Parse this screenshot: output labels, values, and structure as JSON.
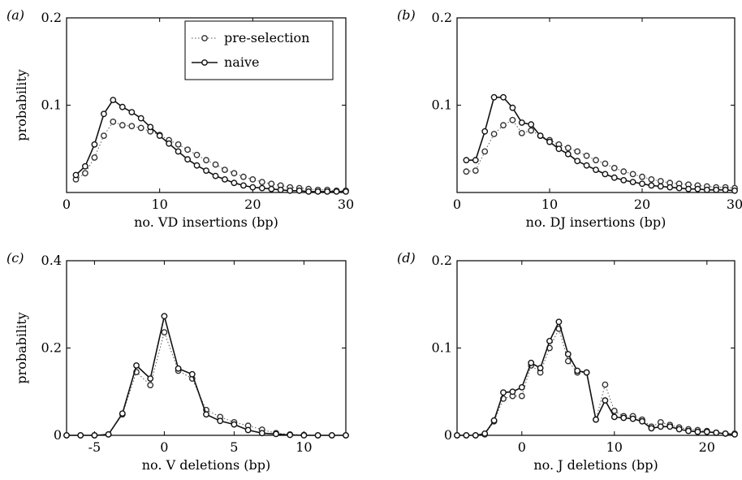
{
  "legend": {
    "pre": "pre-selection",
    "naive": "naive"
  },
  "chart_data": [
    {
      "type": "line",
      "panel_label": "(a)",
      "xlabel": "no. VD insertions (bp)",
      "ylabel": "probability",
      "xlim": [
        0,
        30
      ],
      "ylim": [
        0,
        0.2
      ],
      "xticks": [
        0,
        10,
        20,
        30
      ],
      "yticks": [
        0.1,
        0.2
      ],
      "ytick_labels": [
        "0.1",
        "0.2"
      ],
      "legend_position": "top-center",
      "series": [
        {
          "name": "pre-selection",
          "style": "dotted-circles",
          "x": [
            1,
            2,
            3,
            4,
            5,
            6,
            7,
            8,
            9,
            10,
            11,
            12,
            13,
            14,
            15,
            16,
            17,
            18,
            19,
            20,
            21,
            22,
            23,
            24,
            25,
            26,
            27,
            28,
            29,
            30
          ],
          "values": [
            0.015,
            0.022,
            0.04,
            0.065,
            0.081,
            0.077,
            0.076,
            0.074,
            0.07,
            0.066,
            0.06,
            0.055,
            0.049,
            0.043,
            0.037,
            0.032,
            0.026,
            0.022,
            0.018,
            0.015,
            0.012,
            0.01,
            0.008,
            0.006,
            0.005,
            0.004,
            0.003,
            0.003,
            0.002,
            0.002
          ]
        },
        {
          "name": "naive",
          "style": "solid-circles",
          "x": [
            1,
            2,
            3,
            4,
            5,
            6,
            7,
            8,
            9,
            10,
            11,
            12,
            13,
            14,
            15,
            16,
            17,
            18,
            19,
            20,
            21,
            22,
            23,
            24,
            25,
            26,
            27,
            28,
            29,
            30
          ],
          "values": [
            0.02,
            0.03,
            0.055,
            0.09,
            0.106,
            0.098,
            0.092,
            0.085,
            0.075,
            0.065,
            0.056,
            0.047,
            0.038,
            0.031,
            0.025,
            0.019,
            0.015,
            0.011,
            0.008,
            0.006,
            0.005,
            0.004,
            0.003,
            0.002,
            0.002,
            0.001,
            0.001,
            0.001,
            0.001,
            0.001
          ]
        }
      ]
    },
    {
      "type": "line",
      "panel_label": "(b)",
      "xlabel": "no. DJ insertions (bp)",
      "ylabel": "",
      "xlim": [
        0,
        30
      ],
      "ylim": [
        0,
        0.2
      ],
      "xticks": [
        0,
        10,
        20,
        30
      ],
      "yticks": [
        0.1,
        0.2
      ],
      "ytick_labels": [
        "0.1",
        "0.2"
      ],
      "series": [
        {
          "name": "pre-selection",
          "style": "dotted-circles",
          "x": [
            1,
            2,
            3,
            4,
            5,
            6,
            7,
            8,
            9,
            10,
            11,
            12,
            13,
            14,
            15,
            16,
            17,
            18,
            19,
            20,
            21,
            22,
            23,
            24,
            25,
            26,
            27,
            28,
            29,
            30
          ],
          "values": [
            0.024,
            0.025,
            0.047,
            0.067,
            0.077,
            0.083,
            0.068,
            0.071,
            0.065,
            0.06,
            0.055,
            0.051,
            0.047,
            0.042,
            0.037,
            0.033,
            0.028,
            0.024,
            0.021,
            0.018,
            0.015,
            0.013,
            0.011,
            0.01,
            0.009,
            0.008,
            0.007,
            0.006,
            0.006,
            0.005
          ]
        },
        {
          "name": "naive",
          "style": "solid-circles",
          "x": [
            1,
            2,
            3,
            4,
            5,
            6,
            7,
            8,
            9,
            10,
            11,
            12,
            13,
            14,
            15,
            16,
            17,
            18,
            19,
            20,
            21,
            22,
            23,
            24,
            25,
            26,
            27,
            28,
            29,
            30
          ],
          "values": [
            0.037,
            0.037,
            0.07,
            0.109,
            0.109,
            0.097,
            0.08,
            0.078,
            0.065,
            0.058,
            0.05,
            0.044,
            0.036,
            0.031,
            0.026,
            0.021,
            0.017,
            0.014,
            0.012,
            0.01,
            0.008,
            0.007,
            0.006,
            0.005,
            0.004,
            0.004,
            0.003,
            0.003,
            0.003,
            0.002
          ]
        }
      ]
    },
    {
      "type": "line",
      "panel_label": "(c)",
      "xlabel": "no. V deletions (bp)",
      "ylabel": "probability",
      "xlim": [
        -7,
        13
      ],
      "ylim": [
        0,
        0.4
      ],
      "xticks": [
        -5,
        0,
        5,
        10
      ],
      "yticks": [
        0,
        0.2,
        0.4
      ],
      "ytick_labels": [
        "0",
        "0.2",
        "0.4"
      ],
      "series": [
        {
          "name": "pre-selection",
          "style": "dotted-circles",
          "x": [
            -7,
            -6,
            -5,
            -4,
            -3,
            -2,
            -1,
            0,
            1,
            2,
            3,
            4,
            5,
            6,
            7,
            8,
            9,
            10,
            11,
            12,
            13
          ],
          "values": [
            0,
            0,
            0,
            0.002,
            0.048,
            0.145,
            0.115,
            0.236,
            0.148,
            0.13,
            0.058,
            0.042,
            0.03,
            0.022,
            0.013,
            0.005,
            0.002,
            0.001,
            0,
            0,
            0
          ]
        },
        {
          "name": "naive",
          "style": "solid-circles",
          "x": [
            -7,
            -6,
            -5,
            -4,
            -3,
            -2,
            -1,
            0,
            1,
            2,
            3,
            4,
            5,
            6,
            7,
            8,
            9,
            10,
            11,
            12,
            13
          ],
          "values": [
            0,
            0,
            0,
            0.002,
            0.05,
            0.16,
            0.13,
            0.273,
            0.153,
            0.14,
            0.048,
            0.033,
            0.025,
            0.012,
            0.005,
            0.003,
            0.001,
            0,
            0,
            0,
            0
          ]
        }
      ]
    },
    {
      "type": "line",
      "panel_label": "(d)",
      "xlabel": "no. J deletions (bp)",
      "ylabel": "",
      "xlim": [
        -7,
        23
      ],
      "ylim": [
        0,
        0.2
      ],
      "xticks": [
        0,
        10,
        20
      ],
      "yticks": [
        0,
        0.1,
        0.2
      ],
      "ytick_labels": [
        "0",
        "0.1",
        "0.2"
      ],
      "series": [
        {
          "name": "pre-selection",
          "style": "dotted-circles",
          "x": [
            -7,
            -6,
            -5,
            -4,
            -3,
            -2,
            -1,
            0,
            1,
            2,
            3,
            4,
            5,
            6,
            7,
            8,
            9,
            10,
            11,
            12,
            13,
            14,
            15,
            16,
            17,
            18,
            19,
            20,
            21,
            22,
            23
          ],
          "values": [
            0,
            0,
            0,
            0.001,
            0.016,
            0.042,
            0.045,
            0.045,
            0.08,
            0.072,
            0.1,
            0.122,
            0.085,
            0.072,
            0.072,
            0.018,
            0.058,
            0.028,
            0.022,
            0.022,
            0.018,
            0.01,
            0.015,
            0.012,
            0.009,
            0.007,
            0.006,
            0.005,
            0.003,
            0.002,
            0.002
          ]
        },
        {
          "name": "naive",
          "style": "solid-circles",
          "x": [
            -7,
            -6,
            -5,
            -4,
            -3,
            -2,
            -1,
            0,
            1,
            2,
            3,
            4,
            5,
            6,
            7,
            8,
            9,
            10,
            11,
            12,
            13,
            14,
            15,
            16,
            17,
            18,
            19,
            20,
            21,
            22,
            23
          ],
          "values": [
            0,
            0,
            0,
            0.002,
            0.017,
            0.049,
            0.05,
            0.055,
            0.083,
            0.077,
            0.108,
            0.13,
            0.093,
            0.074,
            0.072,
            0.018,
            0.04,
            0.021,
            0.02,
            0.019,
            0.016,
            0.008,
            0.01,
            0.01,
            0.007,
            0.005,
            0.004,
            0.004,
            0.003,
            0.002,
            0.001
          ]
        }
      ]
    }
  ]
}
